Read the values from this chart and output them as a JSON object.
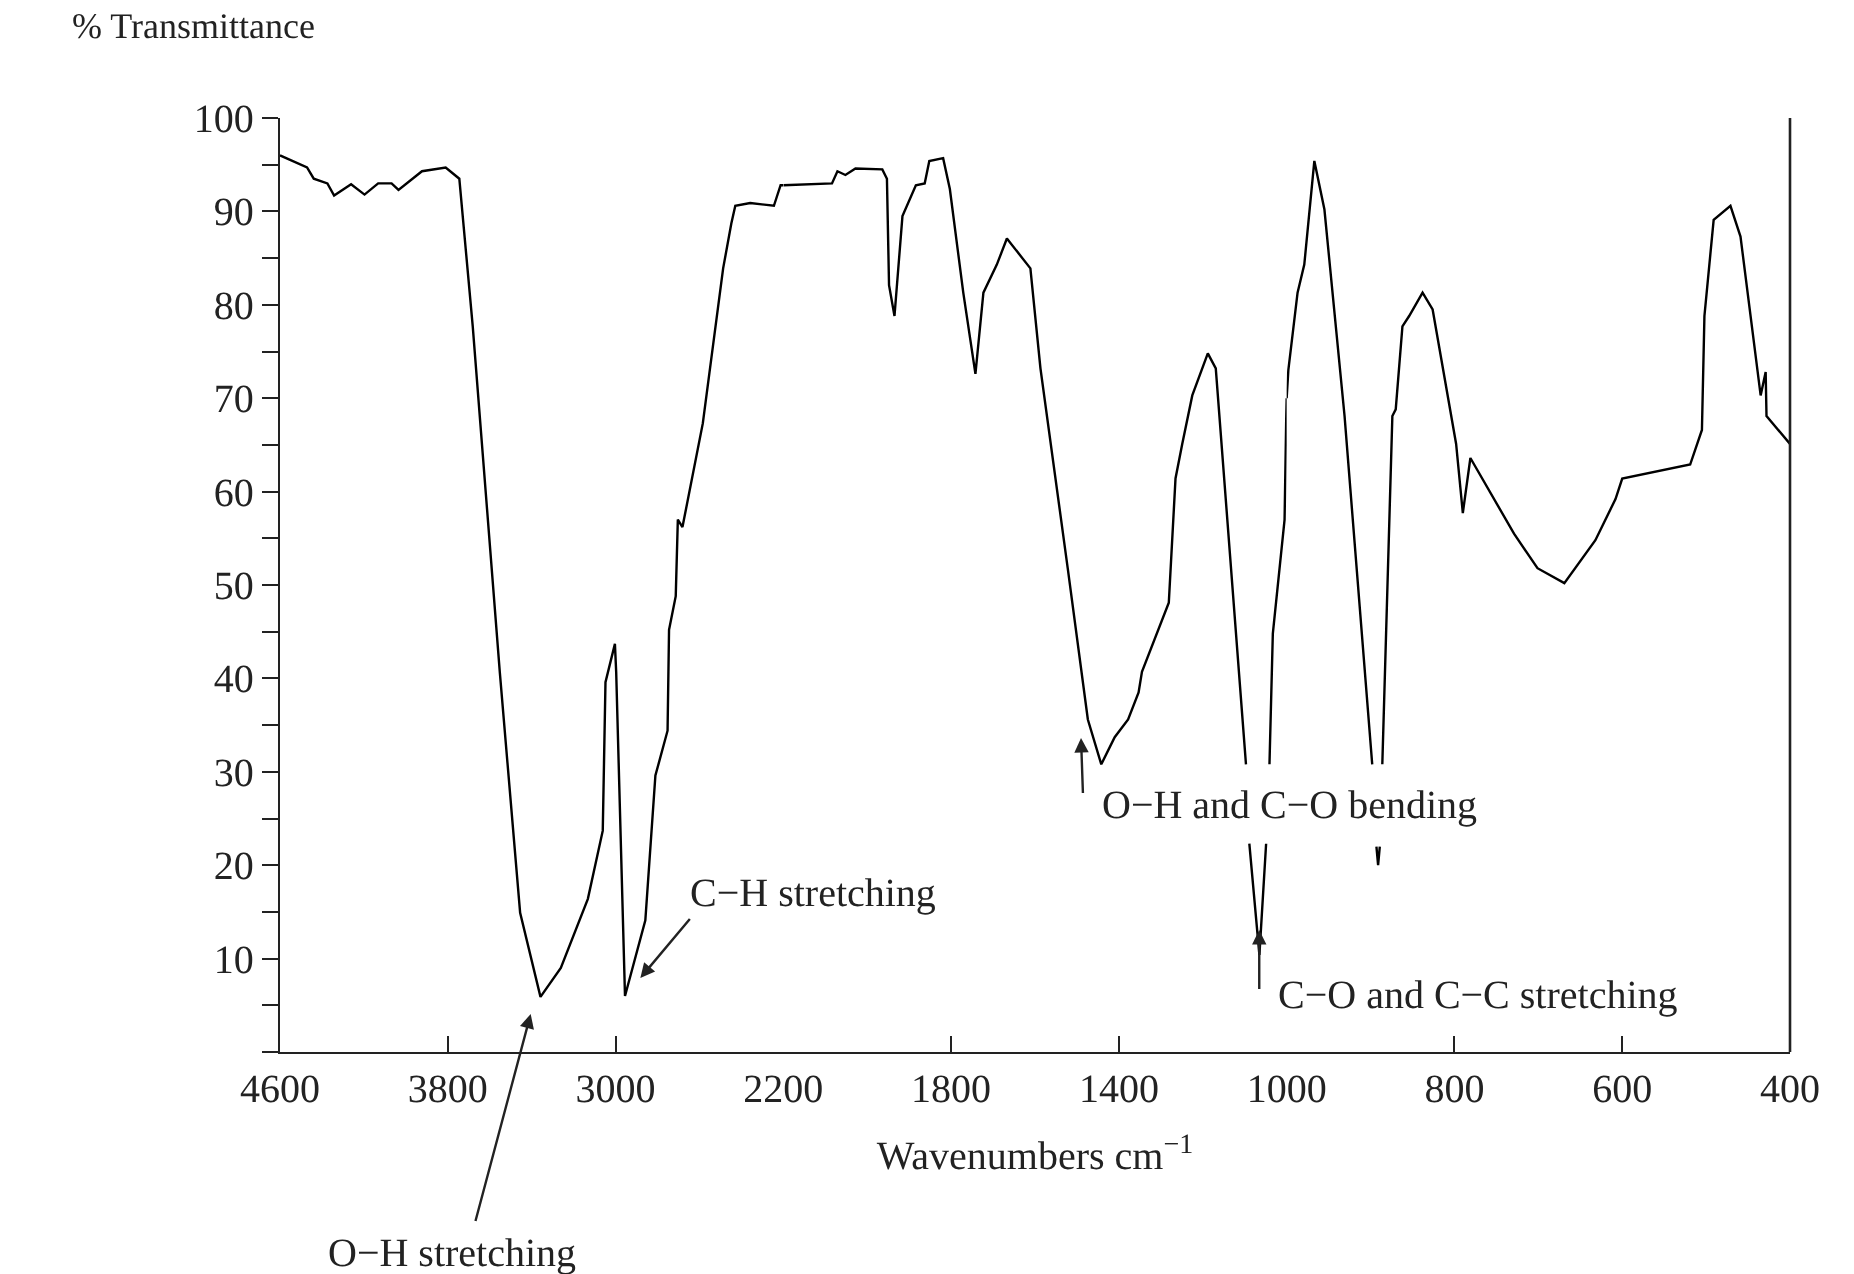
{
  "chart_data": [
    {
      "type": "line",
      "ylabel": "% Transmittance",
      "x": [
        4600,
        4471,
        4439,
        4374,
        4342,
        4261,
        4197,
        4132,
        4068,
        4035,
        3923,
        3810,
        3745,
        3681,
        3552,
        3455,
        3358,
        3261,
        3132,
        3061,
        3048,
        3003,
        2997,
        2955,
        2858,
        2810,
        2752,
        2745,
        2713,
        2703,
        2681,
        2584,
        2487,
        2448,
        2429,
        2358,
        2245,
        2213,
        2200
      ],
      "series": [
        {
          "color": "#000000",
          "values": [
            96.0,
            94.7,
            93.5,
            93.0,
            91.7,
            92.9,
            91.8,
            93.0,
            93.0,
            92.3,
            94.3,
            94.7,
            93.5,
            77.7,
            40.7,
            14.9,
            5.9,
            9.0,
            16.4,
            23.7,
            39.6,
            43.7,
            40.7,
            6.0,
            14.1,
            29.6,
            34.4,
            45.2,
            48.8,
            57.0,
            56.2,
            67.3,
            83.9,
            88.7,
            90.6,
            90.9,
            90.6,
            92.8,
            92.8
          ]
        }
      ],
      "xlim": [
        4600,
        2200
      ],
      "xticks": [
        4600,
        3800,
        3000,
        2200
      ],
      "ylim": [
        0,
        100
      ],
      "yticks": [
        {
          "value": 0,
          "label": null
        },
        {
          "value": 5,
          "label": null
        },
        10,
        {
          "value": 15,
          "label": null
        },
        20,
        {
          "value": 25,
          "label": null
        },
        30,
        {
          "value": 35,
          "label": null
        },
        40,
        {
          "value": 45,
          "label": null
        },
        50,
        {
          "value": 55,
          "label": null
        },
        60,
        {
          "value": 65,
          "label": null
        },
        70,
        {
          "value": 75,
          "label": null
        },
        80,
        {
          "value": 85,
          "label": null
        },
        90,
        {
          "value": 95,
          "label": null
        },
        100
      ],
      "annotations": [
        "O−H stretching",
        "C−H stretching"
      ],
      "marker": "none",
      "line_style": "solid"
    },
    {
      "type": "line",
      "xlabel": "Wavenumbers cm$^{−1}$",
      "x": [
        2200,
        2084,
        2071,
        2052,
        2028,
        1964,
        1953,
        1948,
        1935,
        1916,
        1884,
        1863,
        1852,
        1819,
        1803,
        1771,
        1742,
        1723,
        1691,
        1667,
        1611,
        1587,
        1522,
        1474,
        1442,
        1410,
        1378,
        1353,
        1345,
        1281,
        1265,
        1249,
        1225,
        1188,
        1169,
        1097,
        1093,
        1089,
        1065,
        1049,
        1045,
        1041,
        1033,
        1005,
        1001,
        1000
      ],
      "series": [
        {
          "color": "#000000",
          "values": [
            92.8,
            93.0,
            94.3,
            93.9,
            94.6,
            94.5,
            93.5,
            82.1,
            78.8,
            89.5,
            92.8,
            93.0,
            95.4,
            95.7,
            92.4,
            81.3,
            72.6,
            81.3,
            84.3,
            87.1,
            83.9,
            73.2,
            51.8,
            35.6,
            30.8,
            33.7,
            35.6,
            38.5,
            40.7,
            48.1,
            61.4,
            65.1,
            70.3,
            74.8,
            73.2,
            30.8,
            null,
            22.3,
            10.4,
            22.3,
            null,
            30.8,
            44.8,
            57.0,
            68.0,
            70.0
          ]
        }
      ],
      "xlim": [
        2200,
        1000
      ],
      "xticks": [
        1800,
        1400,
        1000
      ],
      "ylim": [
        0,
        100
      ],
      "tick_labels": "x",
      "annotations": [
        "O−H and C−O bending",
        "C−O and C−C stretching"
      ],
      "marker": "none",
      "line_style": "solid"
    },
    {
      "type": "line",
      "x": [
        1000,
        998,
        987,
        979,
        967,
        955,
        931,
        898,
        895,
        893,
        891,
        889,
        888,
        886,
        874,
        870,
        862,
        854,
        838,
        826,
        798,
        790,
        781,
        729,
        701,
        669,
        632,
        608,
        600,
        519,
        505,
        502,
        491,
        471,
        459,
        435,
        429,
        428,
        400
      ],
      "series": [
        {
          "color": "#000000",
          "values": [
            70.0,
            73.0,
            81.3,
            84.3,
            95.4,
            90.2,
            68.1,
            30.8,
            null,
            22.0,
            20.0,
            22.0,
            null,
            30.8,
            68.1,
            68.8,
            77.7,
            78.8,
            81.3,
            79.5,
            65.1,
            57.7,
            63.6,
            55.5,
            51.8,
            50.2,
            54.8,
            59.2,
            61.4,
            62.9,
            66.6,
            78.8,
            89.1,
            90.6,
            87.3,
            70.3,
            72.8,
            68.1,
            65.1
          ]
        }
      ],
      "xlim": [
        1000,
        400
      ],
      "xticks": [
        800,
        600,
        400
      ],
      "ylim": [
        0,
        100
      ],
      "tick_labels": "x",
      "marker": "none",
      "line_style": "solid"
    }
  ]
}
